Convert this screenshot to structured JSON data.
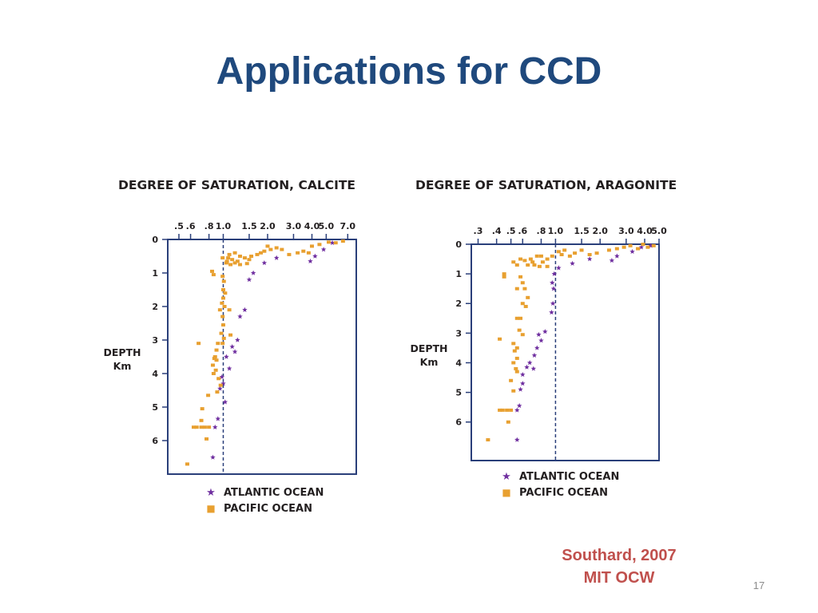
{
  "slide": {
    "title": "Applications for CCD",
    "citation_line1": "Southard, 2007",
    "citation_line2": "MIT OCW",
    "page_number": "17"
  },
  "colors": {
    "title": "#1f497d",
    "citation": "#c0504d",
    "atlantic": "#7030a0",
    "pacific": "#e8a030",
    "axis": "#2a3f7a",
    "text": "#231f20"
  },
  "chart_data": [
    {
      "type": "scatter",
      "title": "DEGREE OF SATURATION, CALCITE",
      "ylabel_line1": "DEPTH",
      "ylabel_line2": "Km",
      "x_scale": "log",
      "xlim": [
        0.42,
        8.0
      ],
      "ylim": [
        0,
        7
      ],
      "x_ticks": [
        0.5,
        0.6,
        0.8,
        1.0,
        1.5,
        2.0,
        3.0,
        4.0,
        5.0,
        7.0
      ],
      "x_tick_labels": [
        ".5",
        ".6",
        ".8",
        "1.0",
        "1.5",
        "2.0",
        "3.0",
        "4.0",
        "5.0",
        "7.0"
      ],
      "y_ticks": [
        0,
        1,
        2,
        3,
        4,
        5,
        6
      ],
      "y_tick_labels": [
        "0",
        "1",
        "2",
        "3",
        "4",
        "5",
        "6"
      ],
      "reference_line_x": 1.0,
      "legend": [
        "ATLANTIC OCEAN",
        "PACIFIC OCEAN"
      ],
      "series": [
        {
          "name": "ATLANTIC OCEAN",
          "marker": "star",
          "points": [
            [
              5.5,
              0.1
            ],
            [
              4.8,
              0.3
            ],
            [
              4.2,
              0.5
            ],
            [
              3.9,
              0.65
            ],
            [
              2.3,
              0.55
            ],
            [
              1.9,
              0.7
            ],
            [
              1.6,
              1.0
            ],
            [
              1.5,
              1.2
            ],
            [
              1.4,
              2.1
            ],
            [
              1.3,
              2.3
            ],
            [
              1.25,
              3.0
            ],
            [
              1.15,
              3.2
            ],
            [
              1.2,
              3.35
            ],
            [
              1.05,
              3.5
            ],
            [
              1.1,
              3.85
            ],
            [
              0.98,
              4.1
            ],
            [
              1.0,
              4.3
            ],
            [
              0.95,
              4.45
            ],
            [
              1.03,
              4.85
            ],
            [
              0.92,
              5.35
            ],
            [
              0.88,
              5.6
            ],
            [
              0.85,
              6.5
            ]
          ]
        },
        {
          "name": "PACIFIC OCEAN",
          "marker": "square",
          "points": [
            [
              6.5,
              0.05
            ],
            [
              5.8,
              0.1
            ],
            [
              5.2,
              0.08
            ],
            [
              4.5,
              0.15
            ],
            [
              4.0,
              0.2
            ],
            [
              3.8,
              0.4
            ],
            [
              3.5,
              0.35
            ],
            [
              3.2,
              0.4
            ],
            [
              2.8,
              0.45
            ],
            [
              2.5,
              0.3
            ],
            [
              2.3,
              0.25
            ],
            [
              2.1,
              0.3
            ],
            [
              2.0,
              0.2
            ],
            [
              1.9,
              0.35
            ],
            [
              1.8,
              0.4
            ],
            [
              1.7,
              0.45
            ],
            [
              1.55,
              0.5
            ],
            [
              1.5,
              0.6
            ],
            [
              1.4,
              0.55
            ],
            [
              1.3,
              0.5
            ],
            [
              1.25,
              0.65
            ],
            [
              1.2,
              0.7
            ],
            [
              1.15,
              0.6
            ],
            [
              1.1,
              0.45
            ],
            [
              1.08,
              0.55
            ],
            [
              1.06,
              0.65
            ],
            [
              1.12,
              0.75
            ],
            [
              1.05,
              0.7
            ],
            [
              1.2,
              0.4
            ],
            [
              1.3,
              0.75
            ],
            [
              1.45,
              0.72
            ],
            [
              0.99,
              0.55
            ],
            [
              0.84,
              0.95
            ],
            [
              0.86,
              1.05
            ],
            [
              0.99,
              1.1
            ],
            [
              1.01,
              1.25
            ],
            [
              1.0,
              1.5
            ],
            [
              1.03,
              1.6
            ],
            [
              1.0,
              1.75
            ],
            [
              0.98,
              1.9
            ],
            [
              1.02,
              2.0
            ],
            [
              1.1,
              2.1
            ],
            [
              0.95,
              2.1
            ],
            [
              0.99,
              2.3
            ],
            [
              1.0,
              2.55
            ],
            [
              0.97,
              2.8
            ],
            [
              1.12,
              2.85
            ],
            [
              1.01,
              2.95
            ],
            [
              0.99,
              3.1
            ],
            [
              0.92,
              3.1
            ],
            [
              0.9,
              3.3
            ],
            [
              0.88,
              3.5
            ],
            [
              0.87,
              3.55
            ],
            [
              0.9,
              3.6
            ],
            [
              0.85,
              3.75
            ],
            [
              0.89,
              3.9
            ],
            [
              0.86,
              4.0
            ],
            [
              0.93,
              4.15
            ],
            [
              0.96,
              4.35
            ],
            [
              0.91,
              4.55
            ],
            [
              0.79,
              4.65
            ],
            [
              0.68,
              3.1
            ],
            [
              0.72,
              5.05
            ],
            [
              0.71,
              5.4
            ],
            [
              0.71,
              5.6
            ],
            [
              0.75,
              5.6
            ],
            [
              0.8,
              5.6
            ],
            [
              0.77,
              5.95
            ],
            [
              0.66,
              5.6
            ],
            [
              0.63,
              5.6
            ],
            [
              0.57,
              6.7
            ]
          ]
        }
      ]
    },
    {
      "type": "scatter",
      "title": "DEGREE OF SATURATION, ARAGONITE",
      "ylabel_line1": "DEPTH",
      "ylabel_line2": "Km",
      "x_scale": "log",
      "xlim": [
        0.27,
        5.0
      ],
      "ylim": [
        0,
        7.3
      ],
      "x_ticks": [
        0.3,
        0.4,
        0.5,
        0.6,
        0.8,
        1.0,
        1.5,
        2.0,
        3.0,
        4.0,
        5.0
      ],
      "x_tick_labels": [
        ".3",
        ".4",
        ".5",
        ".6",
        ".8",
        "1.0",
        "1.5",
        "2.0",
        "3.0",
        "4.0",
        "5.0"
      ],
      "y_ticks": [
        0,
        1,
        2,
        3,
        4,
        5,
        6
      ],
      "y_tick_labels": [
        "0",
        "1",
        "2",
        "3",
        "4",
        "5",
        "6"
      ],
      "reference_line_x": 1.0,
      "legend": [
        "ATLANTIC OCEAN",
        "PACIFIC OCEAN"
      ],
      "series": [
        {
          "name": "ATLANTIC OCEAN",
          "marker": "star",
          "points": [
            [
              4.4,
              0.05
            ],
            [
              3.8,
              0.1
            ],
            [
              3.3,
              0.25
            ],
            [
              2.6,
              0.4
            ],
            [
              2.4,
              0.55
            ],
            [
              1.7,
              0.5
            ],
            [
              1.3,
              0.65
            ],
            [
              1.05,
              0.8
            ],
            [
              0.98,
              1.0
            ],
            [
              0.95,
              1.3
            ],
            [
              0.97,
              1.5
            ],
            [
              0.96,
              2.0
            ],
            [
              0.94,
              2.3
            ],
            [
              0.85,
              2.95
            ],
            [
              0.77,
              3.05
            ],
            [
              0.8,
              3.25
            ],
            [
              0.75,
              3.5
            ],
            [
              0.72,
              3.75
            ],
            [
              0.67,
              4.0
            ],
            [
              0.64,
              4.15
            ],
            [
              0.71,
              4.2
            ],
            [
              0.6,
              4.4
            ],
            [
              0.6,
              4.7
            ],
            [
              0.58,
              4.9
            ],
            [
              0.57,
              5.45
            ],
            [
              0.55,
              5.6
            ],
            [
              0.55,
              6.6
            ]
          ]
        },
        {
          "name": "PACIFIC OCEAN",
          "marker": "square",
          "points": [
            [
              4.6,
              0.05
            ],
            [
              4.2,
              0.1
            ],
            [
              3.9,
              0.0
            ],
            [
              3.6,
              0.15
            ],
            [
              3.2,
              0.05
            ],
            [
              2.9,
              0.1
            ],
            [
              2.6,
              0.15
            ],
            [
              2.3,
              0.2
            ],
            [
              1.9,
              0.3
            ],
            [
              1.7,
              0.35
            ],
            [
              1.5,
              0.2
            ],
            [
              1.35,
              0.3
            ],
            [
              1.25,
              0.4
            ],
            [
              1.15,
              0.2
            ],
            [
              1.1,
              0.35
            ],
            [
              1.05,
              0.25
            ],
            [
              0.95,
              0.4
            ],
            [
              0.88,
              0.5
            ],
            [
              0.82,
              0.6
            ],
            [
              0.78,
              0.75
            ],
            [
              0.75,
              0.4
            ],
            [
              0.7,
              0.6
            ],
            [
              0.65,
              0.7
            ],
            [
              0.62,
              0.55
            ],
            [
              0.58,
              0.5
            ],
            [
              0.55,
              0.7
            ],
            [
              0.52,
              0.6
            ],
            [
              0.72,
              0.7
            ],
            [
              0.68,
              0.5
            ],
            [
              0.88,
              0.75
            ],
            [
              0.8,
              0.4
            ],
            [
              0.45,
              1.0
            ],
            [
              0.45,
              1.1
            ],
            [
              0.58,
              1.1
            ],
            [
              0.6,
              1.3
            ],
            [
              0.62,
              1.5
            ],
            [
              0.55,
              1.5
            ],
            [
              0.65,
              1.8
            ],
            [
              0.6,
              2.0
            ],
            [
              0.63,
              2.1
            ],
            [
              0.58,
              2.5
            ],
            [
              0.55,
              2.5
            ],
            [
              0.57,
              2.9
            ],
            [
              0.6,
              3.05
            ],
            [
              0.42,
              3.2
            ],
            [
              0.52,
              3.35
            ],
            [
              0.55,
              3.5
            ],
            [
              0.53,
              3.6
            ],
            [
              0.55,
              3.85
            ],
            [
              0.52,
              4.0
            ],
            [
              0.54,
              4.2
            ],
            [
              0.55,
              4.3
            ],
            [
              0.5,
              4.6
            ],
            [
              0.52,
              4.95
            ],
            [
              0.42,
              5.6
            ],
            [
              0.44,
              5.6
            ],
            [
              0.47,
              5.6
            ],
            [
              0.5,
              5.6
            ],
            [
              0.48,
              6.0
            ],
            [
              0.35,
              6.6
            ]
          ]
        }
      ]
    }
  ]
}
